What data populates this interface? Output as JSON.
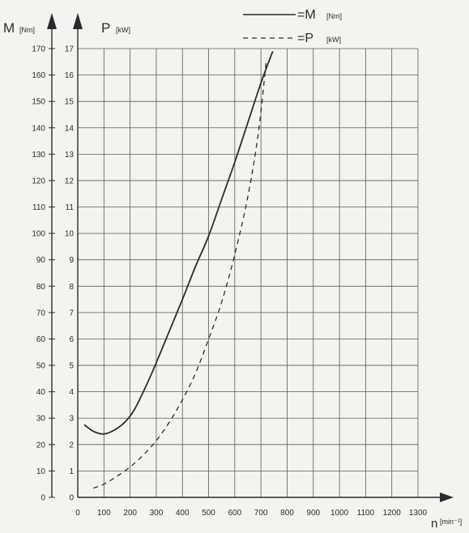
{
  "chart_data": {
    "type": "line",
    "x_axis": {
      "label_main": "n",
      "label_unit": "[min⁻¹]",
      "range": [
        0,
        1300
      ],
      "ticks": [
        "0",
        "100",
        "200",
        "300",
        "400",
        "500",
        "600",
        "700",
        "800",
        "900",
        "1000",
        "1100",
        "1200",
        "1300"
      ]
    },
    "y_axis_left": {
      "label_main": "M",
      "label_unit": "[Nm]",
      "range": [
        0,
        170
      ],
      "ticks": [
        "0",
        "10",
        "20",
        "30",
        "40",
        "50",
        "60",
        "70",
        "80",
        "90",
        "100",
        "110",
        "120",
        "130",
        "140",
        "150",
        "160",
        "170"
      ]
    },
    "y_axis_right": {
      "label_main": "P",
      "label_unit": "[kW]",
      "range": [
        0,
        17
      ],
      "ticks": [
        "0",
        "1",
        "2",
        "3",
        "4",
        "5",
        "6",
        "7",
        "8",
        "9",
        "10",
        "11",
        "12",
        "13",
        "14",
        "15",
        "16",
        "17"
      ]
    },
    "legend": [
      {
        "style": "solid",
        "label_main": "=M",
        "label_unit": "[Nm]"
      },
      {
        "style": "dashed",
        "label_main": "=P",
        "label_unit": "[kW]"
      }
    ],
    "legend_position": "top-right",
    "grid": true,
    "series": [
      {
        "name": "M",
        "axis": "left",
        "style": "solid",
        "x": [
          25,
          60,
          100,
          140,
          180,
          215,
          260,
          300,
          350,
          400,
          450,
          500,
          550,
          600,
          650,
          700,
          745
        ],
        "y": [
          27.5,
          25,
          24,
          25.5,
          28.5,
          33,
          42,
          51,
          63,
          75,
          87.5,
          99,
          113,
          127,
          142,
          157,
          169
        ]
      },
      {
        "name": "P",
        "axis": "right",
        "style": "dashed",
        "x": [
          60,
          100,
          150,
          200,
          250,
          300,
          350,
          400,
          450,
          500,
          550,
          600,
          650,
          690,
          720
        ],
        "y": [
          0.35,
          0.5,
          0.8,
          1.15,
          1.6,
          2.15,
          2.85,
          3.7,
          4.7,
          6.0,
          7.4,
          9.2,
          11.4,
          13.8,
          16.5
        ]
      }
    ]
  }
}
